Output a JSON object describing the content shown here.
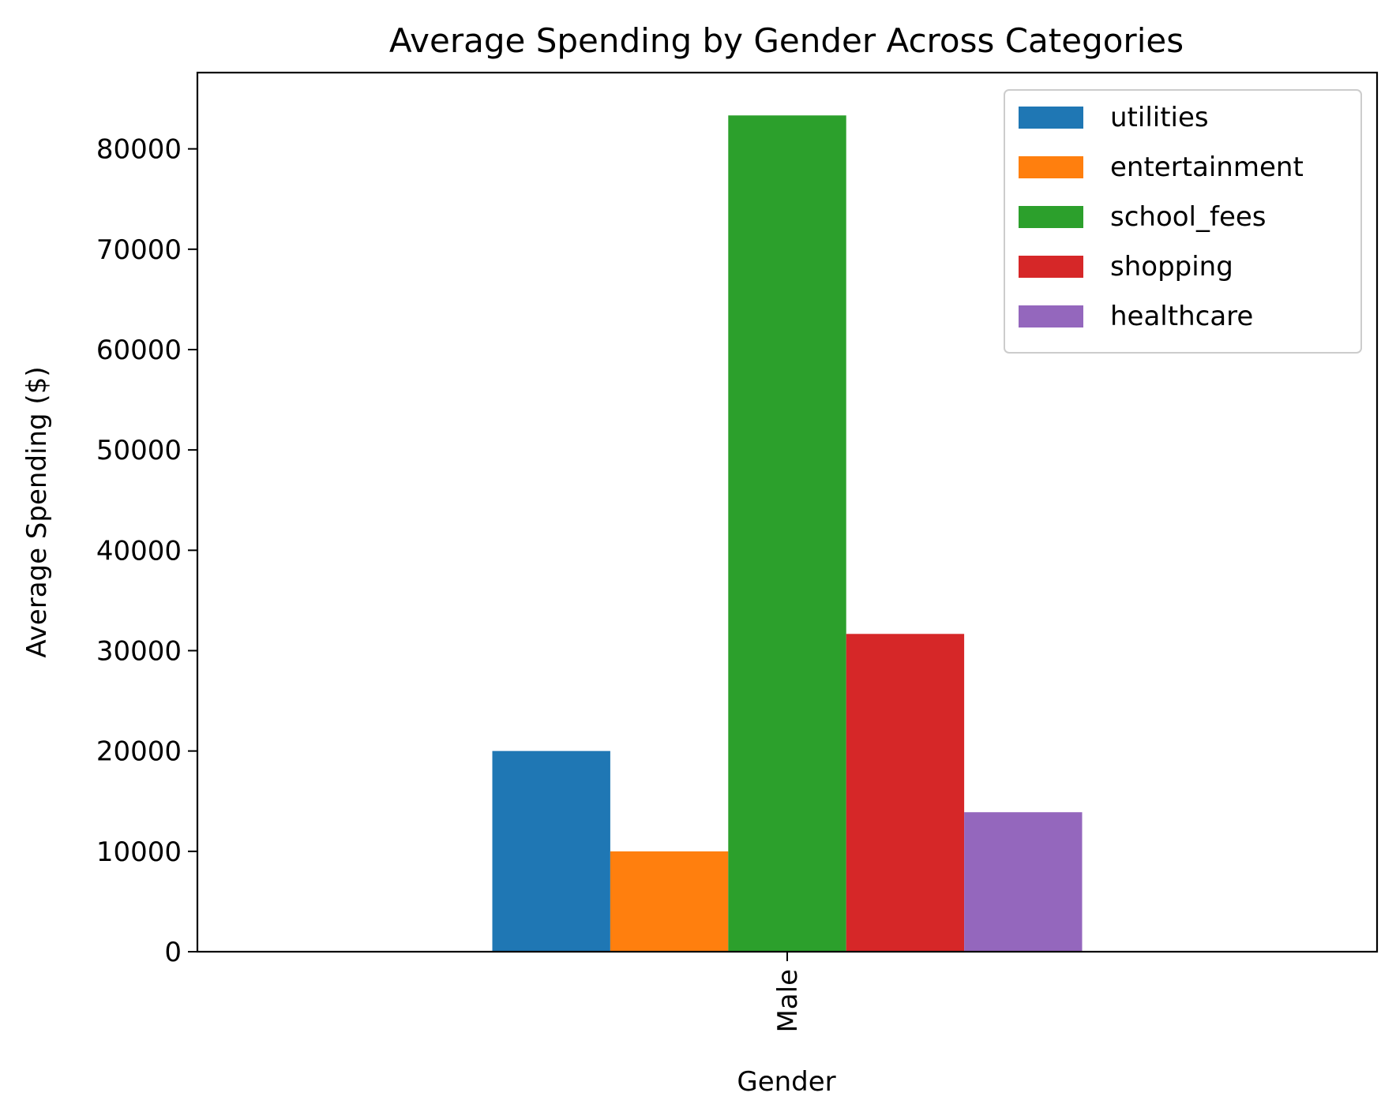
{
  "chart_data": {
    "type": "bar",
    "title": "Average Spending by Gender Across Categories",
    "xlabel": "Gender",
    "ylabel": "Average Spending ($)",
    "categories": [
      "Male"
    ],
    "ylim": [
      0,
      87600
    ],
    "yticks": [
      0,
      10000,
      20000,
      30000,
      40000,
      50000,
      60000,
      70000,
      80000
    ],
    "series": [
      {
        "name": "utilities",
        "color": "#1f77b4",
        "values": [
          20000
        ]
      },
      {
        "name": "entertainment",
        "color": "#ff7f0e",
        "values": [
          10000
        ]
      },
      {
        "name": "school_fees",
        "color": "#2ca02c",
        "values": [
          83333
        ]
      },
      {
        "name": "shopping",
        "color": "#d62728",
        "values": [
          31667
        ]
      },
      {
        "name": "healthcare",
        "color": "#9467bd",
        "values": [
          13900
        ]
      }
    ],
    "legend": {
      "position": "top-right",
      "entries": [
        "utilities",
        "entertainment",
        "school_fees",
        "shopping",
        "healthcare"
      ]
    },
    "grid": false
  }
}
